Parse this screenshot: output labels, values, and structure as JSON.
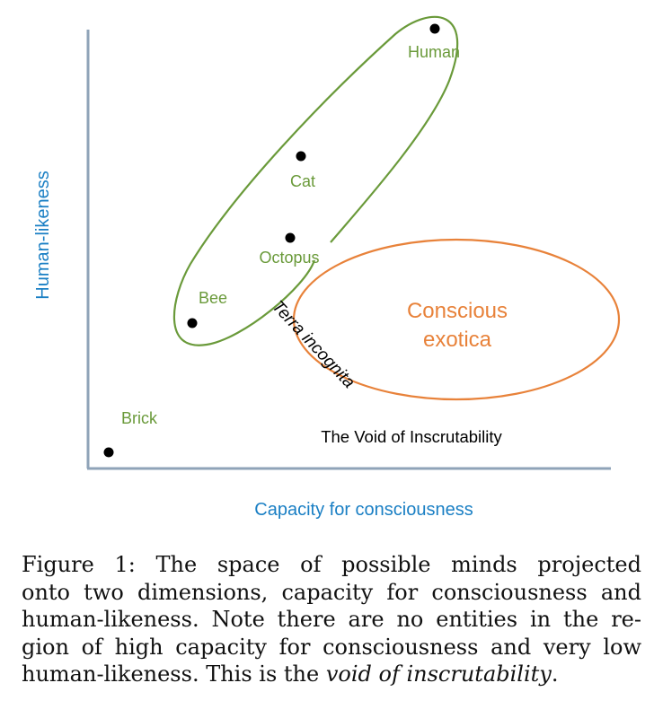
{
  "figure": {
    "y_axis_label": "Human-likeness",
    "x_axis_label": "Capacity for consciousness",
    "entities": [
      {
        "name": "Human"
      },
      {
        "name": "Cat"
      },
      {
        "name": "Octopus"
      },
      {
        "name": "Bee"
      },
      {
        "name": "Brick"
      }
    ],
    "regions": {
      "conscious_exotica_line1": "Conscious",
      "conscious_exotica_line2": "exotica",
      "terra_incognita": "Terra incognita",
      "void": "The Void of Inscrutability"
    },
    "colors": {
      "axis": "#8fa3b8",
      "axis_label": "#1a7fc4",
      "green": "#6a9a3a",
      "orange": "#e8823a",
      "point": "#000000"
    }
  },
  "caption": {
    "line1": "Figure 1:  The space of possible minds projected",
    "line2": "onto two dimensions, capacity for consciousness and",
    "line3": "human-likeness. Note there are no entities in the re-",
    "line4": "gion of high capacity for consciousness and very low",
    "line5_prefix": "human-likeness.  This is the ",
    "line5_emph": "void of inscrutability",
    "line5_suffix": "."
  }
}
